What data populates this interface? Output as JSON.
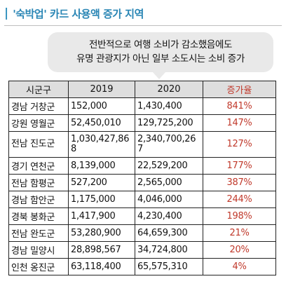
{
  "title": {
    "bar": "|",
    "text": "'숙박업' 카드 사용액 증가 지역"
  },
  "callout": {
    "line1": "전반적으로 여행 소비가 감소했음에도",
    "line2": "유명 관광지가 아닌 일부 소도시는 소비 증가"
  },
  "table": {
    "headers": [
      "시군구",
      "2019",
      "2020",
      "증가율"
    ],
    "rows": [
      {
        "region": "경남 거창군",
        "y2019": "152,000",
        "y2020": "1,430,400",
        "rate": "841%"
      },
      {
        "region": "강원 영월군",
        "y2019": "52,450,010",
        "y2020": "129,725,200",
        "rate": "147%"
      },
      {
        "region": "전남 진도군",
        "y2019": "1,030,427,868",
        "y2020": "2,340,700,267",
        "rate": "127%"
      },
      {
        "region": "경기 연천군",
        "y2019": "8,139,000",
        "y2020": "22,529,200",
        "rate": "177%"
      },
      {
        "region": "전남 함평군",
        "y2019": "527,200",
        "y2020": "2,565,000",
        "rate": "387%"
      },
      {
        "region": "경남 함안군",
        "y2019": "1,175,000",
        "y2020": "4,046,000",
        "rate": "244%"
      },
      {
        "region": "경북 봉화군",
        "y2019": "1,417,900",
        "y2020": "4,230,400",
        "rate": "198%"
      },
      {
        "region": "전남 완도군",
        "y2019": "53,280,900",
        "y2020": "64,659,300",
        "rate": "21%"
      },
      {
        "region": "경남 밀양시",
        "y2019": "28,898,567",
        "y2020": "34,724,800",
        "rate": "20%"
      },
      {
        "region": "인천 옹진군",
        "y2019": "63,118,400",
        "y2020": "65,575,310",
        "rate": "4%"
      }
    ]
  },
  "colors": {
    "title": "#2a86b5",
    "rate": "#c0392b",
    "header_bg": "#dedede",
    "callout_bg": "#e9e9e9"
  }
}
